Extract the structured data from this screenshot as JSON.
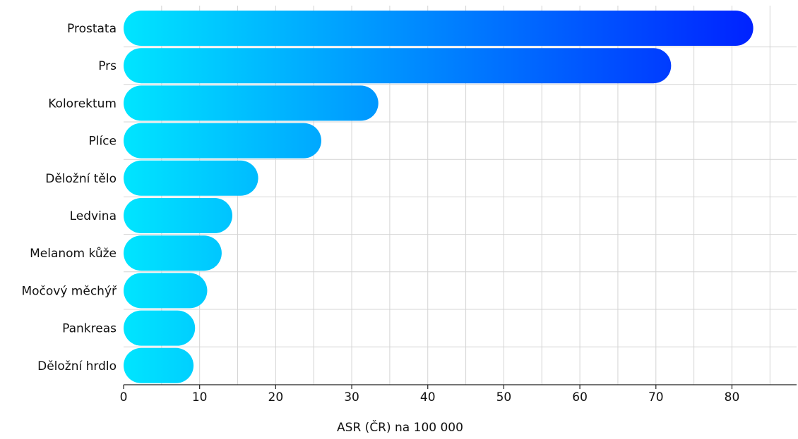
{
  "chart_data": {
    "type": "bar",
    "orientation": "horizontal",
    "categories": [
      "Prostata",
      "Prs",
      "Kolorektum",
      "Plíce",
      "Děložní tělo",
      "Ledvina",
      "Melanom kůže",
      "Močový měchýř",
      "Pankreas",
      "Děložní hrdlo"
    ],
    "values": [
      82.8,
      72.0,
      33.5,
      26.0,
      17.7,
      14.3,
      12.9,
      11.0,
      9.4,
      9.2
    ],
    "title": "",
    "xlabel": "ASR (ČR) na 100 000",
    "ylabel": "",
    "xlim": [
      0,
      88.5
    ],
    "xticks": [
      0,
      10,
      20,
      30,
      40,
      50,
      60,
      70,
      80
    ],
    "grid": true,
    "legend": "none",
    "colors": {
      "gradient_start": "#00e5ff",
      "gradient_end": "#0022ff",
      "grid": "#d4d4d4",
      "axis": "#222222"
    }
  }
}
